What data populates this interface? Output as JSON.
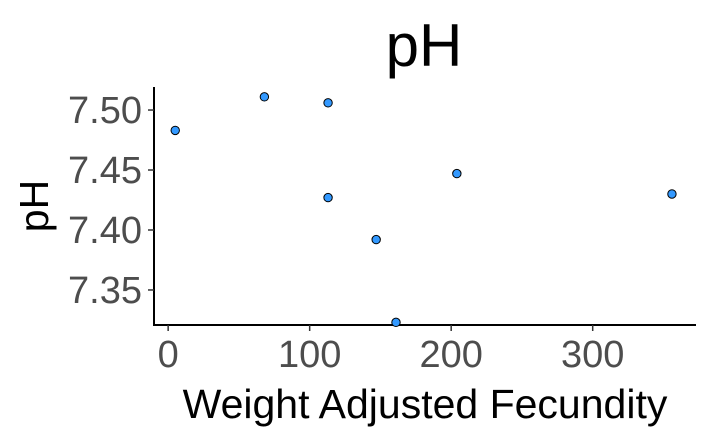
{
  "chart_data": {
    "type": "scatter",
    "title": "pH",
    "xlabel": "Weight Adjusted Fecundity",
    "ylabel": "pH",
    "xlim": [
      -10,
      373
    ],
    "ylim": [
      7.3208,
      7.5192
    ],
    "xticks": [
      0,
      100,
      200,
      300
    ],
    "xtick_labels": [
      "0",
      "100",
      "200",
      "300"
    ],
    "yticks": [
      7.35,
      7.4,
      7.45,
      7.5
    ],
    "ytick_labels": [
      "7.35",
      "7.40",
      "7.45",
      "7.50"
    ],
    "grid": false,
    "point_color": "#3399ff",
    "x": [
      5,
      68,
      113,
      113,
      147,
      161,
      204,
      356
    ],
    "y": [
      7.483,
      7.511,
      7.506,
      7.427,
      7.392,
      7.323,
      7.447,
      7.43
    ]
  }
}
